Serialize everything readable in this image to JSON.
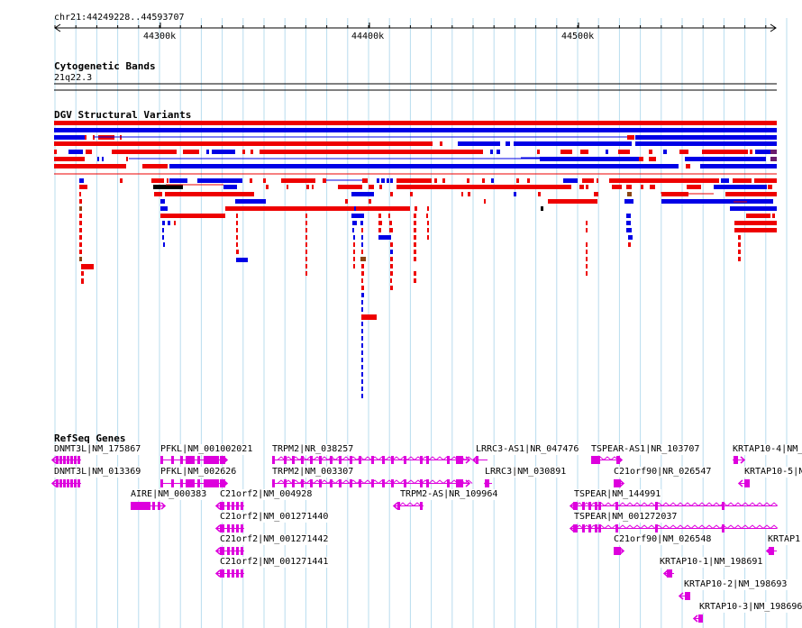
{
  "region": {
    "label": "chr21:44249228..44593707"
  },
  "ruler": {
    "ticks": [
      "44300k",
      "44400k",
      "44500k"
    ]
  },
  "cytoband": {
    "title": "Cytogenetic Bands",
    "band": "21q22.3"
  },
  "dgv": {
    "title": "DGV Structural Variants",
    "colors": {
      "gain": "#0000e6",
      "loss": "#ee0000",
      "both": "#8b4513",
      "other": "#000000"
    }
  },
  "refseq": {
    "title": "RefSeq Genes",
    "gene_color": "#dd00dd",
    "genes": [
      {
        "label": "DNMT3L|NM_175867"
      },
      {
        "label": "DNMT3L|NM_013369"
      },
      {
        "label": "PFKL|NM_001002021"
      },
      {
        "label": "PFKL|NM_002626"
      },
      {
        "label": "AIRE|NM_000383"
      },
      {
        "label": "TRPM2|NR_038257"
      },
      {
        "label": "TRPM2|NM_003307"
      },
      {
        "label": "C21orf2|NM_004928"
      },
      {
        "label": "C21orf2|NM_001271440"
      },
      {
        "label": "C21orf2|NM_001271442"
      },
      {
        "label": "C21orf2|NM_001271441"
      },
      {
        "label": "TRPM2-AS|NR_109964"
      },
      {
        "label": "LRRC3-AS1|NR_047476"
      },
      {
        "label": "LRRC3|NM_030891"
      },
      {
        "label": "TSPEAR-AS1|NR_103707"
      },
      {
        "label": "C21orf90|NR_026547"
      },
      {
        "label": "TSPEAR|NM_144991"
      },
      {
        "label": "TSPEAR|NM_001272037"
      },
      {
        "label": "C21orf90|NM_026548"
      },
      {
        "label": "KRTAP10-4|NM_"
      },
      {
        "label": "KRTAP10-5|NM_"
      },
      {
        "label": "KRTAP1"
      },
      {
        "label": "KRTAP10-1|NM_198691"
      },
      {
        "label": "KRTAP10-2|NM_198693"
      },
      {
        "label": "KRTAP10-3|NM_198696"
      }
    ]
  }
}
